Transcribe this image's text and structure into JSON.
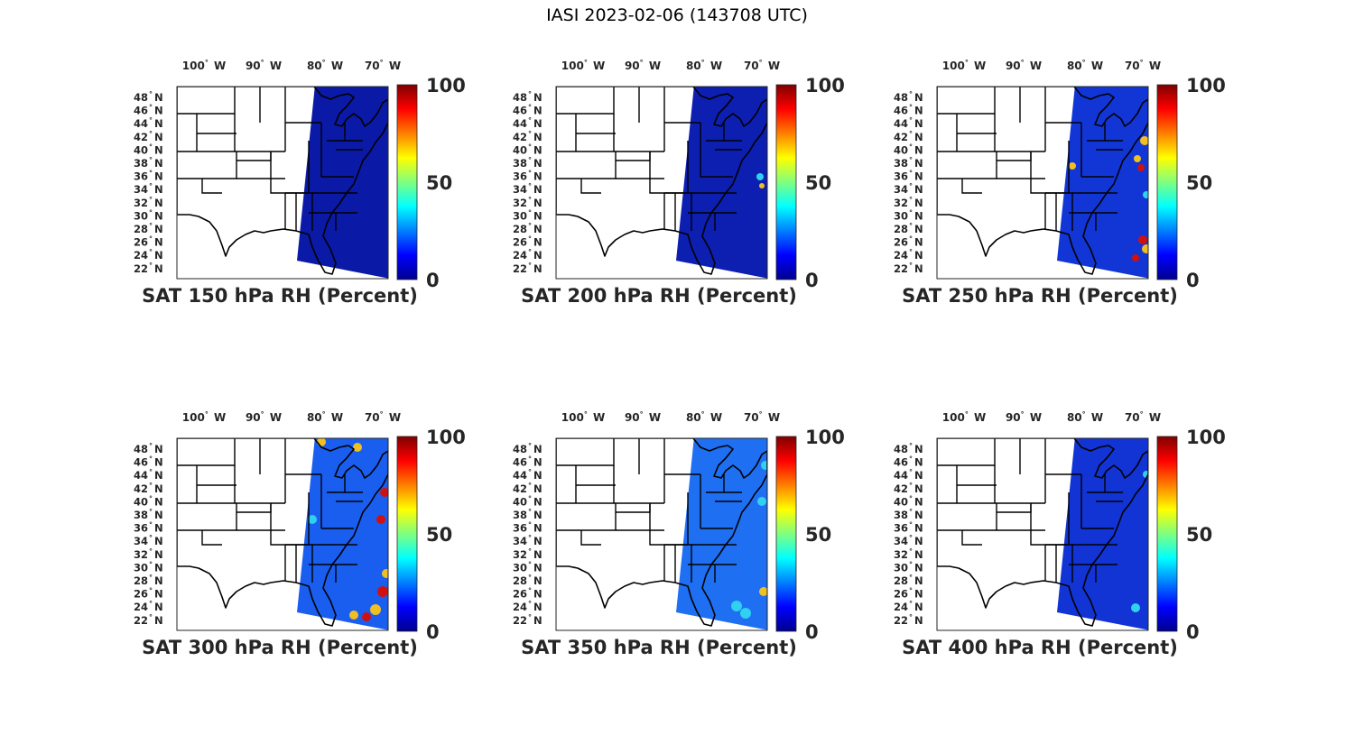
{
  "title": "IASI 2023-02-06 (143708 UTC)",
  "lon_labels": [
    {
      "deg": "100",
      "hemi": "W"
    },
    {
      "deg": "90",
      "hemi": "W"
    },
    {
      "deg": "80",
      "hemi": "W"
    },
    {
      "deg": "70",
      "hemi": "W"
    }
  ],
  "lat_labels": [
    {
      "deg": "48",
      "hemi": "N"
    },
    {
      "deg": "46",
      "hemi": "N"
    },
    {
      "deg": "44",
      "hemi": "N"
    },
    {
      "deg": "42",
      "hemi": "N"
    },
    {
      "deg": "40",
      "hemi": "N"
    },
    {
      "deg": "38",
      "hemi": "N"
    },
    {
      "deg": "36",
      "hemi": "N"
    },
    {
      "deg": "34",
      "hemi": "N"
    },
    {
      "deg": "32",
      "hemi": "N"
    },
    {
      "deg": "30",
      "hemi": "N"
    },
    {
      "deg": "28",
      "hemi": "N"
    },
    {
      "deg": "26",
      "hemi": "N"
    },
    {
      "deg": "24",
      "hemi": "N"
    },
    {
      "deg": "22",
      "hemi": "N"
    }
  ],
  "colorbar": {
    "ticks": [
      "100",
      "50",
      "0"
    ],
    "stops": [
      "#7f0000",
      "#ff0000",
      "#ff7f00",
      "#ffff00",
      "#7fff7f",
      "#00ffff",
      "#007fff",
      "#0000ff",
      "#00008f"
    ]
  },
  "colors": {
    "swath_150": "#0a1aa6",
    "swath_200": "#0c1fb0",
    "swath_250": "#1236d6",
    "swath_300": "#1a5ef0",
    "swath_350": "#1f6ff2",
    "swath_400": "#1234d4",
    "moist_high": "#d01010",
    "moist_mid": "#f0c020",
    "moist_low": "#30d0f0"
  },
  "panels": [
    {
      "caption": "SAT 150 hPa RH (Percent)",
      "level": "150"
    },
    {
      "caption": "SAT 200 hPa RH (Percent)",
      "level": "200"
    },
    {
      "caption": "SAT 250 hPa RH (Percent)",
      "level": "250"
    },
    {
      "caption": "SAT 300 hPa RH (Percent)",
      "level": "300"
    },
    {
      "caption": "SAT 350 hPa RH (Percent)",
      "level": "350"
    },
    {
      "caption": "SAT 400 hPa RH (Percent)",
      "level": "400"
    }
  ]
}
